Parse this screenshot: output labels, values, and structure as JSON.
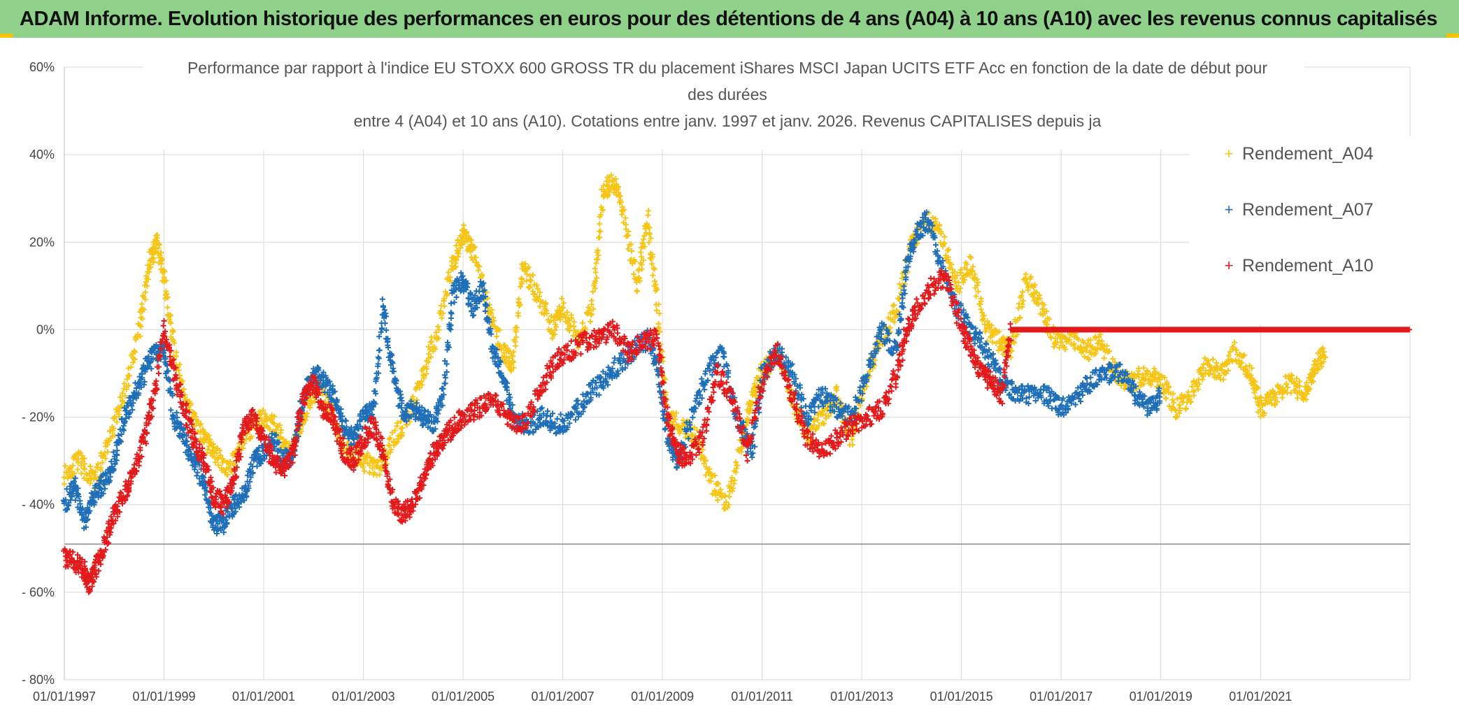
{
  "banner": {
    "text": "ADAM Informe. Evolution historique des performances en euros pour des détentions de 4 ans (A04) à 10 ans (A10) avec les revenus connus capitalisés"
  },
  "colors": {
    "a04": "#f5c518",
    "a07": "#1f6fb8",
    "a10": "#e31a1c",
    "banner": "#8fd18a",
    "grid": "#d9d9d9"
  },
  "chart_data": {
    "type": "scatter",
    "title_lines": [
      "Performance par rapport à l'indice EU STOXX 600 GROSS TR  du placement iShares MSCI Japan UCITS ETF Acc en fonction de la date de début pour",
      "des durées",
      "entre 4 (A04) et 10 ans (A10). Cotations entre janv. 1997 et janv. 2026. Revenus CAPITALISES depuis ja"
    ],
    "ylim": [
      -80,
      60
    ],
    "xlim": [
      1997.0,
      2024.0
    ],
    "y_ticks": [
      60,
      40,
      20,
      0,
      -20,
      -40,
      -60,
      -80
    ],
    "y_tick_labels": [
      "60%",
      "40%",
      "20%",
      "0%",
      "- 20%",
      "- 40%",
      "- 60%",
      "- 80%"
    ],
    "x_ticks": [
      1997,
      1999,
      2001,
      2003,
      2005,
      2007,
      2009,
      2011,
      2013,
      2015,
      2017,
      2019,
      2021
    ],
    "x_tick_labels": [
      "01/01/1997",
      "01/01/1999",
      "01/01/2001",
      "01/01/2003",
      "01/01/2005",
      "01/01/2007",
      "01/01/2009",
      "01/01/2011",
      "01/01/2013",
      "01/01/2015",
      "01/01/2017",
      "01/01/2019",
      "01/01/2021"
    ],
    "legend_position": "top-right",
    "series": [
      {
        "name": "Rendement_A04",
        "color": "#f5c518",
        "x": [
          1997.0,
          1997.3,
          1997.6,
          1997.9,
          1998.2,
          1998.5,
          1998.7,
          1998.85,
          1999.0,
          1999.2,
          1999.5,
          1999.8,
          2000.0,
          2000.3,
          2000.6,
          2000.9,
          2001.2,
          2001.5,
          2001.8,
          2002.1,
          2002.4,
          2002.7,
          2003.0,
          2003.3,
          2003.6,
          2003.9,
          2004.2,
          2004.5,
          2004.8,
          2005.0,
          2005.2,
          2005.5,
          2005.8,
          2006.0,
          2006.2,
          2006.5,
          2006.8,
          2007.0,
          2007.3,
          2007.6,
          2007.8,
          2008.0,
          2008.2,
          2008.5,
          2008.7,
          2008.9,
          2009.1,
          2009.4,
          2009.7,
          2010.0,
          2010.3,
          2010.6,
          2010.8,
          2011.0,
          2011.3,
          2011.6,
          2011.9,
          2012.2,
          2012.5,
          2012.8,
          2013.1,
          2013.4,
          2013.7,
          2014.0,
          2014.3,
          2014.6,
          2014.9,
          2015.2,
          2015.5,
          2015.8,
          2016.0,
          2016.3,
          2016.6,
          2016.9,
          2017.2,
          2017.5,
          2017.8,
          2018.1,
          2018.4,
          2018.7,
          2019.0,
          2019.3,
          2019.6,
          2019.9,
          2020.2,
          2020.5,
          2020.8,
          2021.0,
          2021.3,
          2021.6,
          2021.9,
          2022.1,
          2022.3
        ],
        "y": [
          -33,
          -30,
          -35,
          -25,
          -15,
          0,
          15,
          20,
          12,
          -5,
          -18,
          -25,
          -28,
          -32,
          -25,
          -20,
          -22,
          -28,
          -20,
          -12,
          -20,
          -28,
          -30,
          -32,
          -25,
          -20,
          -10,
          0,
          15,
          22,
          18,
          5,
          -5,
          -8,
          15,
          8,
          0,
          5,
          -2,
          5,
          30,
          35,
          28,
          10,
          25,
          5,
          -20,
          -22,
          -25,
          -35,
          -40,
          -25,
          -15,
          -10,
          -5,
          -15,
          -25,
          -20,
          -15,
          -25,
          -10,
          -2,
          5,
          20,
          25,
          22,
          10,
          15,
          0,
          -3,
          -5,
          12,
          5,
          -3,
          -2,
          -5,
          -3,
          -10,
          -12,
          -10,
          -12,
          -18,
          -15,
          -8,
          -10,
          -5,
          -10,
          -18,
          -15,
          -12,
          -15,
          -8,
          -5
        ]
      },
      {
        "name": "Rendement_A07",
        "color": "#1f6fb8",
        "x": [
          1997.0,
          1997.2,
          1997.4,
          1997.6,
          1997.8,
          1998.0,
          1998.2,
          1998.4,
          1998.6,
          1998.8,
          1999.0,
          1999.2,
          1999.4,
          1999.6,
          1999.8,
          2000.0,
          2000.2,
          2000.4,
          2000.6,
          2000.8,
          2001.0,
          2001.2,
          2001.4,
          2001.6,
          2001.8,
          2002.0,
          2002.2,
          2002.4,
          2002.6,
          2002.8,
          2003.0,
          2003.2,
          2003.4,
          2003.6,
          2003.8,
          2004.0,
          2004.2,
          2004.4,
          2004.6,
          2004.8,
          2005.0,
          2005.2,
          2005.4,
          2005.6,
          2005.8,
          2006.0,
          2006.3,
          2006.6,
          2006.9,
          2007.2,
          2007.5,
          2007.8,
          2008.1,
          2008.4,
          2008.7,
          2008.9,
          2009.1,
          2009.3,
          2009.6,
          2009.9,
          2010.2,
          2010.5,
          2010.8,
          2011.0,
          2011.3,
          2011.6,
          2011.9,
          2012.2,
          2012.5,
          2012.8,
          2013.1,
          2013.4,
          2013.7,
          2013.9,
          2014.1,
          2014.3,
          2014.6,
          2014.9,
          2015.2,
          2015.5,
          2015.8,
          2016.1,
          2016.4,
          2016.7,
          2017.0,
          2017.3,
          2017.6,
          2017.9,
          2018.2,
          2018.5,
          2018.8,
          2019.0
        ],
        "y": [
          -40,
          -35,
          -44,
          -38,
          -35,
          -30,
          -20,
          -15,
          -10,
          -5,
          -5,
          -20,
          -25,
          -30,
          -35,
          -45,
          -44,
          -40,
          -38,
          -30,
          -28,
          -25,
          -30,
          -28,
          -15,
          -10,
          -12,
          -15,
          -22,
          -25,
          -20,
          -18,
          5,
          -10,
          -20,
          -18,
          -20,
          -22,
          -15,
          8,
          12,
          5,
          10,
          -5,
          -10,
          -20,
          -22,
          -20,
          -22,
          -20,
          -15,
          -12,
          -8,
          -5,
          -2,
          -8,
          -25,
          -30,
          -20,
          -10,
          -5,
          -20,
          -28,
          -10,
          -5,
          -10,
          -20,
          -15,
          -18,
          -20,
          -10,
          0,
          -5,
          15,
          22,
          25,
          15,
          5,
          0,
          -5,
          -12,
          -15,
          -15,
          -15,
          -18,
          -15,
          -12,
          -10,
          -10,
          -15,
          -18,
          -15
        ]
      },
      {
        "name": "Rendement_A10",
        "color": "#e31a1c",
        "x": [
          1997.0,
          1997.2,
          1997.4,
          1997.5,
          1997.6,
          1997.8,
          1998.0,
          1998.2,
          1998.4,
          1998.6,
          1998.8,
          1999.0,
          1999.2,
          1999.4,
          1999.6,
          1999.8,
          2000.0,
          2000.2,
          2000.4,
          2000.6,
          2000.8,
          2001.0,
          2001.2,
          2001.4,
          2001.6,
          2001.8,
          2002.0,
          2002.2,
          2002.4,
          2002.6,
          2002.8,
          2003.0,
          2003.2,
          2003.4,
          2003.6,
          2003.8,
          2004.0,
          2004.2,
          2004.4,
          2004.6,
          2004.8,
          2005.0,
          2005.3,
          2005.6,
          2005.9,
          2006.2,
          2006.5,
          2006.8,
          2007.1,
          2007.4,
          2007.7,
          2008.0,
          2008.3,
          2008.6,
          2008.9,
          2009.1,
          2009.3,
          2009.5,
          2009.8,
          2010.1,
          2010.4,
          2010.7,
          2011.0,
          2011.3,
          2011.6,
          2011.9,
          2012.2,
          2012.5,
          2012.8,
          2013.1,
          2013.4,
          2013.7,
          2013.9,
          2014.1,
          2014.4,
          2014.7,
          2015.0,
          2015.2,
          2015.4,
          2015.6,
          2015.8,
          2016.0,
          2016.5,
          2017.0,
          2017.5,
          2018.0,
          2018.5,
          2019.0,
          2019.5,
          2020.0,
          2020.5,
          2021.0,
          2021.5,
          2022.0,
          2022.5,
          2023.0,
          2023.5,
          2024.0
        ],
        "y": [
          -52,
          -53,
          -55,
          -58,
          -55,
          -50,
          -42,
          -38,
          -32,
          -25,
          -15,
          0,
          -10,
          -18,
          -25,
          -30,
          -38,
          -40,
          -35,
          -22,
          -20,
          -25,
          -30,
          -32,
          -28,
          -15,
          -12,
          -18,
          -20,
          -28,
          -30,
          -25,
          -22,
          -28,
          -40,
          -42,
          -40,
          -35,
          -28,
          -25,
          -22,
          -20,
          -18,
          -15,
          -20,
          -22,
          -15,
          -8,
          -5,
          -3,
          -2,
          0,
          -5,
          -3,
          -2,
          -20,
          -28,
          -30,
          -25,
          -10,
          -15,
          -28,
          -12,
          -5,
          -15,
          -25,
          -28,
          -25,
          -22,
          -20,
          -18,
          -10,
          0,
          5,
          10,
          12,
          0,
          -5,
          -10,
          -12,
          -15,
          0,
          0,
          0,
          0,
          0,
          0,
          0,
          0,
          0,
          0,
          0,
          0,
          0,
          0,
          0,
          0,
          0
        ]
      }
    ]
  }
}
